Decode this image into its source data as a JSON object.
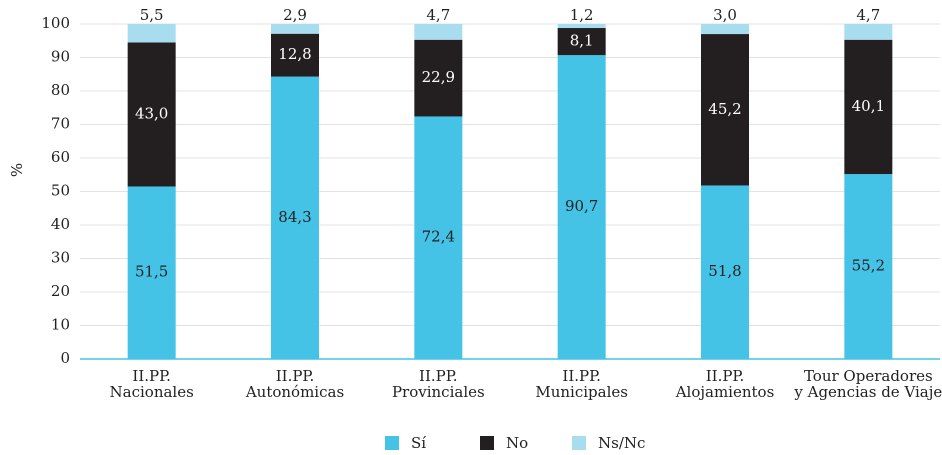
{
  "chart_data": {
    "type": "stacked_bar",
    "y_label": "%",
    "categories": [
      [
        "II.PP.",
        "Nacionales"
      ],
      [
        "II.PP.",
        "Autonómicas"
      ],
      [
        "II.PP.",
        "Provinciales"
      ],
      [
        "II.PP.",
        "Municipales"
      ],
      [
        "II.PP.",
        "Alojamientos"
      ],
      [
        "Tour Operadores",
        "y Agencias de Viaje"
      ]
    ],
    "series": [
      {
        "name": "Sí",
        "color": "#45c3e6",
        "label_color": "#222222",
        "values": [
          51.5,
          84.3,
          72.4,
          90.7,
          51.8,
          55.2
        ],
        "value_labels": [
          "51,5",
          "84,3",
          "72,4",
          "90,7",
          "51,8",
          "55,2"
        ]
      },
      {
        "name": "No",
        "color": "#231f20",
        "label_color": "#ffffff",
        "values": [
          43.0,
          12.8,
          22.9,
          8.1,
          45.2,
          40.1
        ],
        "value_labels": [
          "43,0",
          "12,8",
          "22,9",
          "8,1",
          "45,2",
          "40,1"
        ]
      },
      {
        "name": "Ns/Nc",
        "color": "#a8dcef",
        "label_color": "#222222",
        "values": [
          5.5,
          2.9,
          4.7,
          1.2,
          3.0,
          4.7
        ],
        "value_labels": [
          "5,5",
          "2,9",
          "4,7",
          "1,2",
          "3,0",
          "4,7"
        ]
      }
    ],
    "ylim": [
      0,
      100
    ],
    "yticks": [
      0,
      10,
      20,
      30,
      40,
      50,
      60,
      70,
      80,
      90,
      100
    ],
    "grid": true,
    "legend": "bottom"
  }
}
